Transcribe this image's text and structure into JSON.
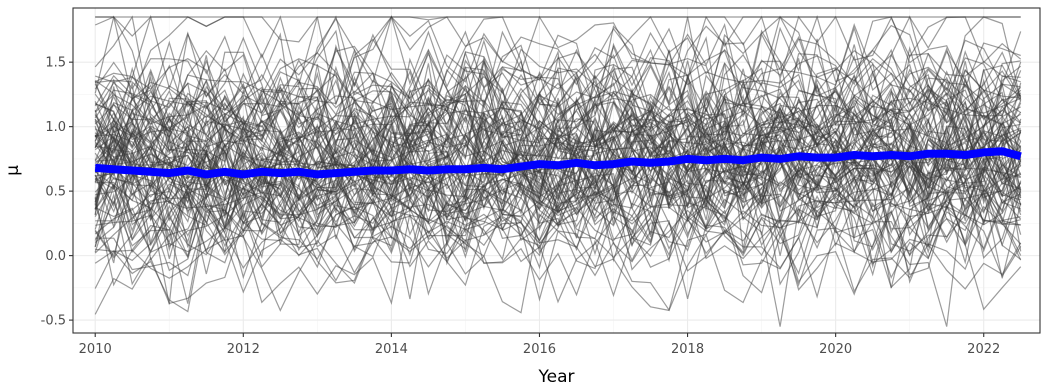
{
  "chart_data": {
    "type": "line",
    "title": "",
    "xlabel": "Year",
    "ylabel": "μ",
    "xlim": [
      2009.7,
      2022.76
    ],
    "ylim": [
      -0.6,
      1.92
    ],
    "x_ticks": [
      2010,
      2012,
      2014,
      2016,
      2018,
      2020,
      2022
    ],
    "x_tick_labels": [
      "2010",
      "2012",
      "2014",
      "2016",
      "2018",
      "2020",
      "2022"
    ],
    "y_ticks": [
      -0.5,
      0.0,
      0.5,
      1.0,
      1.5
    ],
    "y_tick_labels": [
      "-0.5",
      "0.0",
      "0.5",
      "1.0",
      "1.5"
    ],
    "grid": true,
    "legend": "none",
    "x_start": 2010,
    "x_end": 2022.5,
    "x_step": 0.25,
    "background_trajectories": {
      "count": 100,
      "range": [
        -0.55,
        1.85
      ],
      "color": "#3a3a3a",
      "opacity": 0.5
    },
    "series": [
      {
        "color": "#0000ff",
        "x": [
          2010,
          2010.25,
          2010.5,
          2010.75,
          2011,
          2011.25,
          2011.5,
          2011.75,
          2012,
          2012.25,
          2012.5,
          2012.75,
          2013,
          2013.25,
          2013.5,
          2013.75,
          2014,
          2014.25,
          2014.5,
          2014.75,
          2015,
          2015.25,
          2015.5,
          2015.75,
          2016,
          2016.25,
          2016.5,
          2016.75,
          2017,
          2017.25,
          2017.5,
          2017.75,
          2018,
          2018.25,
          2018.5,
          2018.75,
          2019,
          2019.25,
          2019.5,
          2019.75,
          2020,
          2020.25,
          2020.5,
          2020.75,
          2021,
          2021.25,
          2021.5,
          2021.75,
          2022,
          2022.25,
          2022.5
        ],
        "values": [
          0.68,
          0.67,
          0.66,
          0.65,
          0.64,
          0.66,
          0.63,
          0.65,
          0.63,
          0.65,
          0.64,
          0.65,
          0.63,
          0.64,
          0.65,
          0.66,
          0.66,
          0.67,
          0.66,
          0.67,
          0.67,
          0.68,
          0.67,
          0.69,
          0.71,
          0.7,
          0.72,
          0.7,
          0.71,
          0.73,
          0.72,
          0.73,
          0.75,
          0.74,
          0.75,
          0.74,
          0.76,
          0.75,
          0.77,
          0.76,
          0.76,
          0.78,
          0.77,
          0.78,
          0.77,
          0.79,
          0.79,
          0.78,
          0.8,
          0.81,
          0.77
        ]
      }
    ]
  }
}
